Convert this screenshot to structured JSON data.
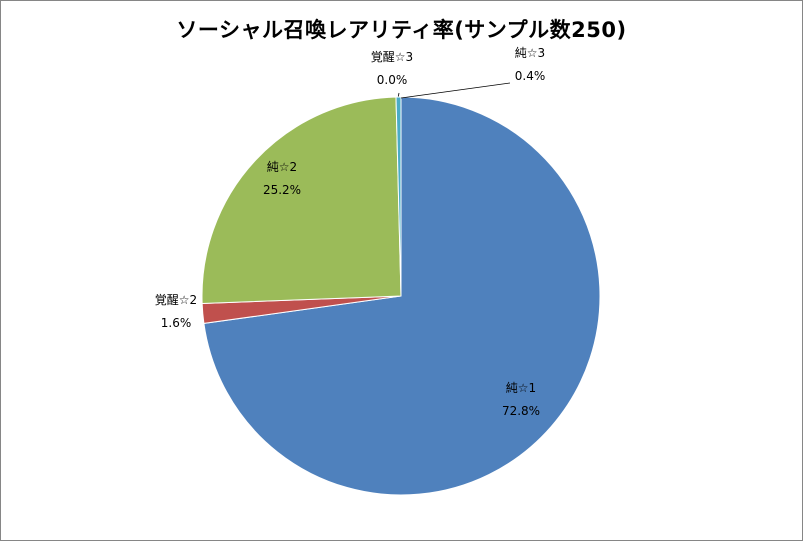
{
  "chart_data": {
    "type": "pie",
    "title": "ソーシャル召喚レアリティ率(サンプル数250)",
    "slices": [
      {
        "name": "純☆1",
        "value": 72.8,
        "pct_label": "72.8%",
        "color": "#4F81BD"
      },
      {
        "name": "覚醒☆2",
        "value": 1.6,
        "pct_label": "1.6%",
        "color": "#C0504D"
      },
      {
        "name": "純☆2",
        "value": 25.2,
        "pct_label": "25.2%",
        "color": "#9BBB59"
      },
      {
        "name": "覚醒☆3",
        "value": 0.0,
        "pct_label": "0.0%",
        "color": "#8064A2"
      },
      {
        "name": "純☆3",
        "value": 0.4,
        "pct_label": "0.4%",
        "color": "#4BACC6"
      }
    ],
    "start": "12 o'clock",
    "direction": "clockwise",
    "legend": "none",
    "data_labels": "category name and percentage"
  }
}
